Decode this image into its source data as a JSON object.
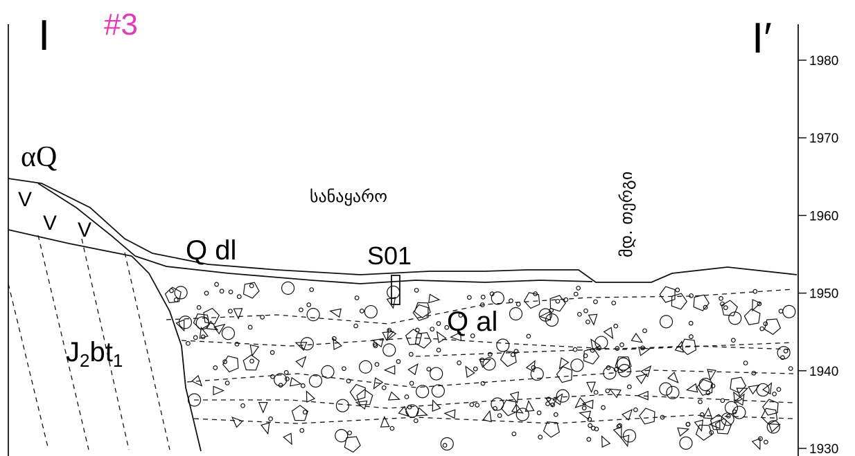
{
  "header": {
    "section_start": "I",
    "section_number": "#3",
    "section_end": "I′"
  },
  "labels": {
    "alpha_q": "αQ",
    "volcanic": [
      "V",
      "V",
      "V"
    ],
    "q_dl": "Q dl",
    "sample": "S01",
    "q_al": "Q al",
    "jurassic": {
      "main": "J",
      "sub1": "2",
      "mid": "bt",
      "sub2": "1"
    },
    "dump": "სანაყარო",
    "river": "მდ. თერგი"
  },
  "elevation_axis": {
    "ticks": [
      1930,
      1940,
      1950,
      1960,
      1970,
      1980
    ]
  }
}
